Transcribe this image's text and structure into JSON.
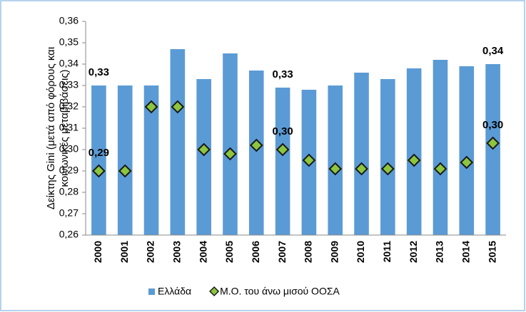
{
  "chart_data": {
    "type": "bar-diamond",
    "y_label": [
      "Δείκτης Gini (μετά από φόρους και",
      "κοινωνικές μεταβιβάσεις)"
    ],
    "categories": [
      "2000",
      "2001",
      "2002",
      "2003",
      "2004",
      "2005",
      "2006",
      "2007",
      "2008",
      "2009",
      "2010",
      "2011",
      "2012",
      "2013",
      "2014",
      "2015"
    ],
    "series": [
      {
        "name": "Ελλάδα",
        "kind": "bar",
        "color": "#5b9bd5",
        "label_color": "#2e86c8",
        "values": [
          0.33,
          0.33,
          0.33,
          0.347,
          0.333,
          0.345,
          0.337,
          0.329,
          0.328,
          0.33,
          0.336,
          0.333,
          0.338,
          0.342,
          0.339,
          0.34
        ],
        "value_labels": [
          "0,33",
          null,
          null,
          null,
          null,
          null,
          null,
          "0,33",
          null,
          null,
          null,
          null,
          null,
          null,
          null,
          "0,34"
        ]
      },
      {
        "name": "Μ.Ο. του άνω μισού ΟΟΣΑ",
        "kind": "diamond",
        "color": "#8cc63f",
        "label_color": "#000000",
        "values": [
          0.29,
          0.29,
          0.32,
          0.32,
          0.3,
          0.298,
          0.302,
          0.3,
          0.295,
          0.291,
          0.291,
          0.291,
          0.295,
          0.291,
          0.294,
          0.303
        ],
        "value_labels": [
          "0,29",
          null,
          null,
          null,
          null,
          null,
          null,
          "0,30",
          null,
          null,
          null,
          null,
          null,
          null,
          null,
          "0,30"
        ]
      }
    ],
    "ylim": [
      0.26,
      0.36
    ],
    "yticks": [
      {
        "value": 0.26,
        "label": "0,26"
      },
      {
        "value": 0.27,
        "label": "0,27"
      },
      {
        "value": 0.28,
        "label": "0,28"
      },
      {
        "value": 0.29,
        "label": "0,29"
      },
      {
        "value": 0.3,
        "label": "0,30"
      },
      {
        "value": 0.31,
        "label": "0,31"
      },
      {
        "value": 0.32,
        "label": "0,32"
      },
      {
        "value": 0.33,
        "label": "0,33"
      },
      {
        "value": 0.34,
        "label": "0,34"
      },
      {
        "value": 0.35,
        "label": "0,35"
      },
      {
        "value": 0.36,
        "label": "0,36"
      }
    ],
    "grid": false
  }
}
